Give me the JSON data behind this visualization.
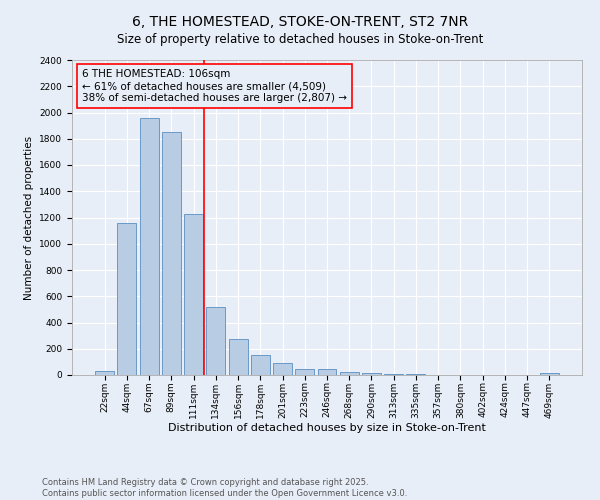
{
  "title": "6, THE HOMESTEAD, STOKE-ON-TRENT, ST2 7NR",
  "subtitle": "Size of property relative to detached houses in Stoke-on-Trent",
  "xlabel": "Distribution of detached houses by size in Stoke-on-Trent",
  "ylabel": "Number of detached properties",
  "bin_labels": [
    "22sqm",
    "44sqm",
    "67sqm",
    "89sqm",
    "111sqm",
    "134sqm",
    "156sqm",
    "178sqm",
    "201sqm",
    "223sqm",
    "246sqm",
    "268sqm",
    "290sqm",
    "313sqm",
    "335sqm",
    "357sqm",
    "380sqm",
    "402sqm",
    "424sqm",
    "447sqm",
    "469sqm"
  ],
  "bar_values": [
    28,
    1160,
    1960,
    1850,
    1230,
    520,
    275,
    155,
    90,
    42,
    42,
    20,
    14,
    8,
    5,
    3,
    3,
    2,
    2,
    2,
    12
  ],
  "bar_color": "#b8cce4",
  "bar_edgecolor": "#5a8fc3",
  "background_color": "#e8eef7",
  "grid_color": "#ffffff",
  "vline_x": 4.45,
  "vline_color": "red",
  "annotation_line1": "6 THE HOMESTEAD: 106sqm",
  "annotation_line2": "← 61% of detached houses are smaller (4,509)",
  "annotation_line3": "38% of semi-detached houses are larger (2,807) →",
  "annotation_box_color": "red",
  "annotation_fontsize": 7.5,
  "ylim": [
    0,
    2400
  ],
  "yticks": [
    0,
    200,
    400,
    600,
    800,
    1000,
    1200,
    1400,
    1600,
    1800,
    2000,
    2200,
    2400
  ],
  "footer_text": "Contains HM Land Registry data © Crown copyright and database right 2025.\nContains public sector information licensed under the Open Government Licence v3.0.",
  "title_fontsize": 10,
  "subtitle_fontsize": 8.5,
  "xlabel_fontsize": 8,
  "ylabel_fontsize": 7.5,
  "tick_fontsize": 6.5,
  "footer_fontsize": 6.0
}
